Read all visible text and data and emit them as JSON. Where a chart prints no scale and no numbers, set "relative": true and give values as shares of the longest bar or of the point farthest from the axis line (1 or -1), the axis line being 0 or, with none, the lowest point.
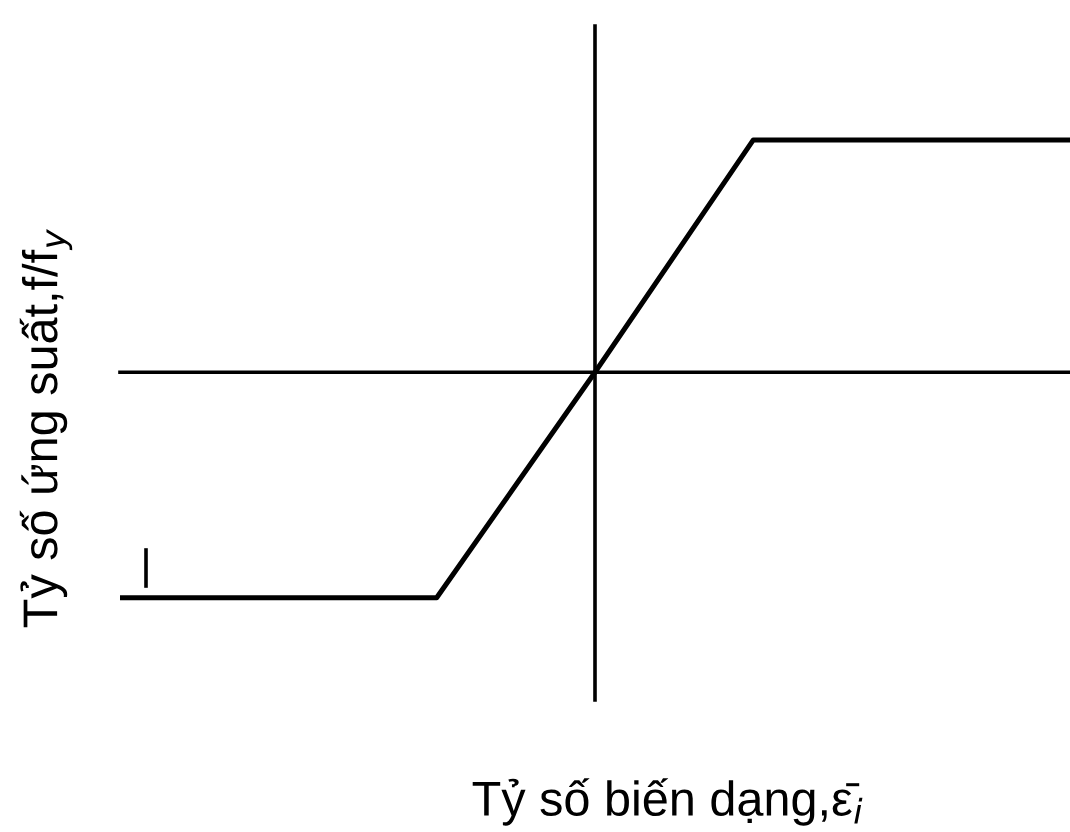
{
  "chart_data": {
    "type": "line",
    "xlabel": "Tỷ số biến dạng,ε̄$_{i}$",
    "ylabel": "Tỷ số ứng suất,f/f$_{y}$",
    "categories": [
      null,
      null,
      null,
      null,
      null,
      null,
      null
    ],
    "series": [
      {
        "color": "#000000",
        "values": [
          -0.97,
          -0.97,
          -0.97,
          0,
          1,
          1,
          1
        ]
      }
    ],
    "relative": true,
    "marker": "none",
    "line_style": "solid"
  }
}
